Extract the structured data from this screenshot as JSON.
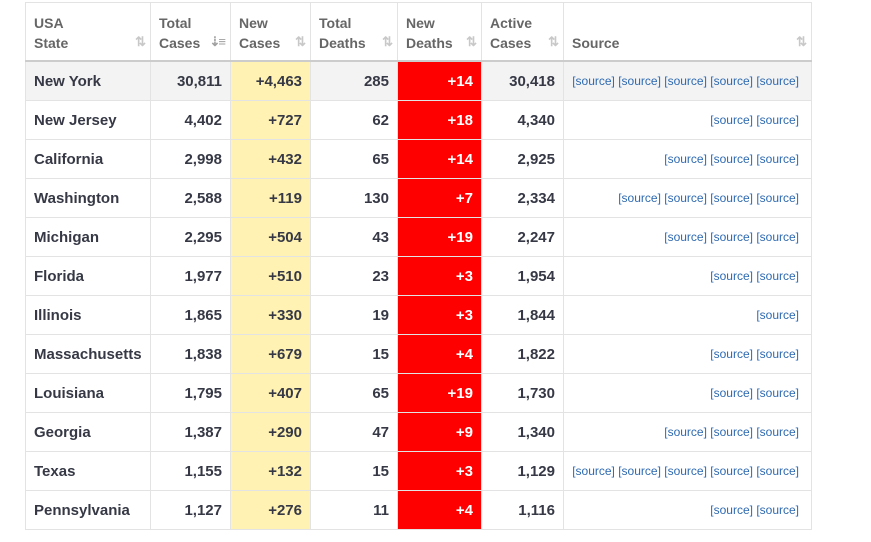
{
  "headers": [
    {
      "line1": "USA",
      "line2": "State",
      "sort": "⇅"
    },
    {
      "line1": "Total",
      "line2": "Cases",
      "sort": "⇣≡"
    },
    {
      "line1": "New",
      "line2": "Cases",
      "sort": "⇅"
    },
    {
      "line1": "Total",
      "line2": "Deaths",
      "sort": "⇅"
    },
    {
      "line1": "New",
      "line2": "Deaths",
      "sort": "⇅"
    },
    {
      "line1": "Active",
      "line2": "Cases",
      "sort": "⇅"
    },
    {
      "line1": "Source",
      "line2": "",
      "sort": "⇅"
    }
  ],
  "source_label": "[source]",
  "rows": [
    {
      "state": "New York",
      "total_cases": "30,811",
      "new_cases": "+4,463",
      "total_deaths": "285",
      "new_deaths": "+14",
      "active_cases": "30,418",
      "source_count": 5
    },
    {
      "state": "New Jersey",
      "total_cases": "4,402",
      "new_cases": "+727",
      "total_deaths": "62",
      "new_deaths": "+18",
      "active_cases": "4,340",
      "source_count": 2
    },
    {
      "state": "California",
      "total_cases": "2,998",
      "new_cases": "+432",
      "total_deaths": "65",
      "new_deaths": "+14",
      "active_cases": "2,925",
      "source_count": 3
    },
    {
      "state": "Washington",
      "total_cases": "2,588",
      "new_cases": "+119",
      "total_deaths": "130",
      "new_deaths": "+7",
      "active_cases": "2,334",
      "source_count": 4
    },
    {
      "state": "Michigan",
      "total_cases": "2,295",
      "new_cases": "+504",
      "total_deaths": "43",
      "new_deaths": "+19",
      "active_cases": "2,247",
      "source_count": 3
    },
    {
      "state": "Florida",
      "total_cases": "1,977",
      "new_cases": "+510",
      "total_deaths": "23",
      "new_deaths": "+3",
      "active_cases": "1,954",
      "source_count": 2
    },
    {
      "state": "Illinois",
      "total_cases": "1,865",
      "new_cases": "+330",
      "total_deaths": "19",
      "new_deaths": "+3",
      "active_cases": "1,844",
      "source_count": 1
    },
    {
      "state": "Massachusetts",
      "total_cases": "1,838",
      "new_cases": "+679",
      "total_deaths": "15",
      "new_deaths": "+4",
      "active_cases": "1,822",
      "source_count": 2
    },
    {
      "state": "Louisiana",
      "total_cases": "1,795",
      "new_cases": "+407",
      "total_deaths": "65",
      "new_deaths": "+19",
      "active_cases": "1,730",
      "source_count": 2
    },
    {
      "state": "Georgia",
      "total_cases": "1,387",
      "new_cases": "+290",
      "total_deaths": "47",
      "new_deaths": "+9",
      "active_cases": "1,340",
      "source_count": 3
    },
    {
      "state": "Texas",
      "total_cases": "1,155",
      "new_cases": "+132",
      "total_deaths": "15",
      "new_deaths": "+3",
      "active_cases": "1,129",
      "source_count": 5
    },
    {
      "state": "Pennsylvania",
      "total_cases": "1,127",
      "new_cases": "+276",
      "total_deaths": "11",
      "new_deaths": "+4",
      "active_cases": "1,116",
      "source_count": 2
    }
  ],
  "colors": {
    "new_cases_bg": "#fff2b3",
    "new_deaths_bg": "#ff0000",
    "link": "#2e6ab1"
  }
}
